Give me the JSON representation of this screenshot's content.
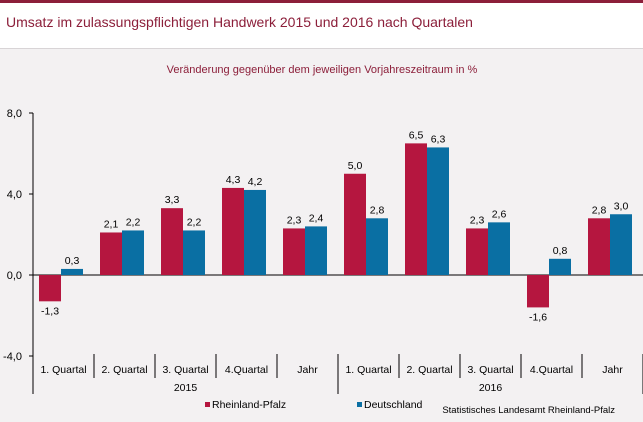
{
  "title": "Umsatz im zulassungspflichtigen Handwerk 2015 und 2016 nach Quartalen",
  "source": "Statistisches Landesamt Rheinland-Pfalz",
  "colors": {
    "rlp": "#b5163f",
    "de": "#0a6fa3",
    "accent": "#8c1f3a"
  },
  "chart_data": {
    "type": "bar",
    "subtitle": "Veränderung gegenüber dem jeweiligen Vorjahreszeitraum in %",
    "categories": [
      "1. Quartal",
      "2. Quartal",
      "3. Quartal",
      "4.Quartal",
      "Jahr",
      "1. Quartal",
      "2. Quartal",
      "3. Quartal",
      "4.Quartal",
      "Jahr"
    ],
    "groups": [
      {
        "label": "2015",
        "start": 0,
        "end": 4
      },
      {
        "label": "2016",
        "start": 5,
        "end": 9
      }
    ],
    "series": [
      {
        "name": "Rheinland-Pfalz",
        "values": [
          -1.3,
          2.1,
          3.3,
          4.3,
          2.3,
          5.0,
          6.5,
          2.3,
          -1.6,
          2.8
        ],
        "labels": [
          "-1,3",
          "2,1",
          "3,3",
          "4,3",
          "2,3",
          "5,0",
          "6,5",
          "2,3",
          "-1,6",
          "2,8"
        ]
      },
      {
        "name": "Deutschland",
        "values": [
          0.3,
          2.2,
          2.2,
          4.2,
          2.4,
          2.8,
          6.3,
          2.6,
          0.8,
          3.0
        ],
        "labels": [
          "0,3",
          "2,2",
          "2,2",
          "4,2",
          "2,4",
          "2,8",
          "6,3",
          "2,6",
          "0,8",
          "3,0"
        ]
      }
    ],
    "yticks": [
      -4,
      0,
      4,
      8
    ],
    "ytick_labels": [
      "-4,0",
      "0,0",
      "4,0",
      "8,0"
    ],
    "ylim": [
      -4,
      8
    ],
    "legend": "bottom"
  }
}
